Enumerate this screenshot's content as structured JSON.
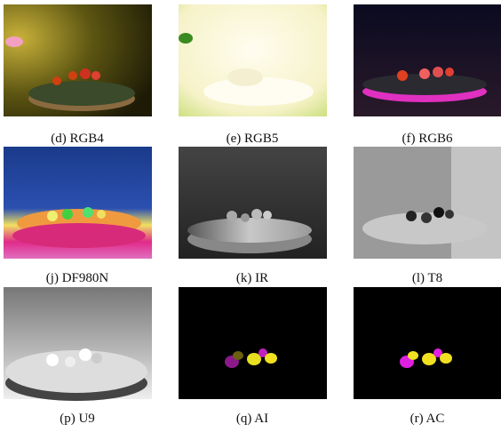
{
  "figure": {
    "panels": [
      {
        "caption": "(d) RGB4"
      },
      {
        "caption": "(e) RGB5"
      },
      {
        "caption": "(f) RGB6"
      },
      {
        "caption": "(j) DF980N"
      },
      {
        "caption": "(k) IR"
      },
      {
        "caption": "(l) T8"
      },
      {
        "caption": "(p) U9"
      },
      {
        "caption": "(q) AI"
      },
      {
        "caption": "(r) AC"
      }
    ]
  }
}
